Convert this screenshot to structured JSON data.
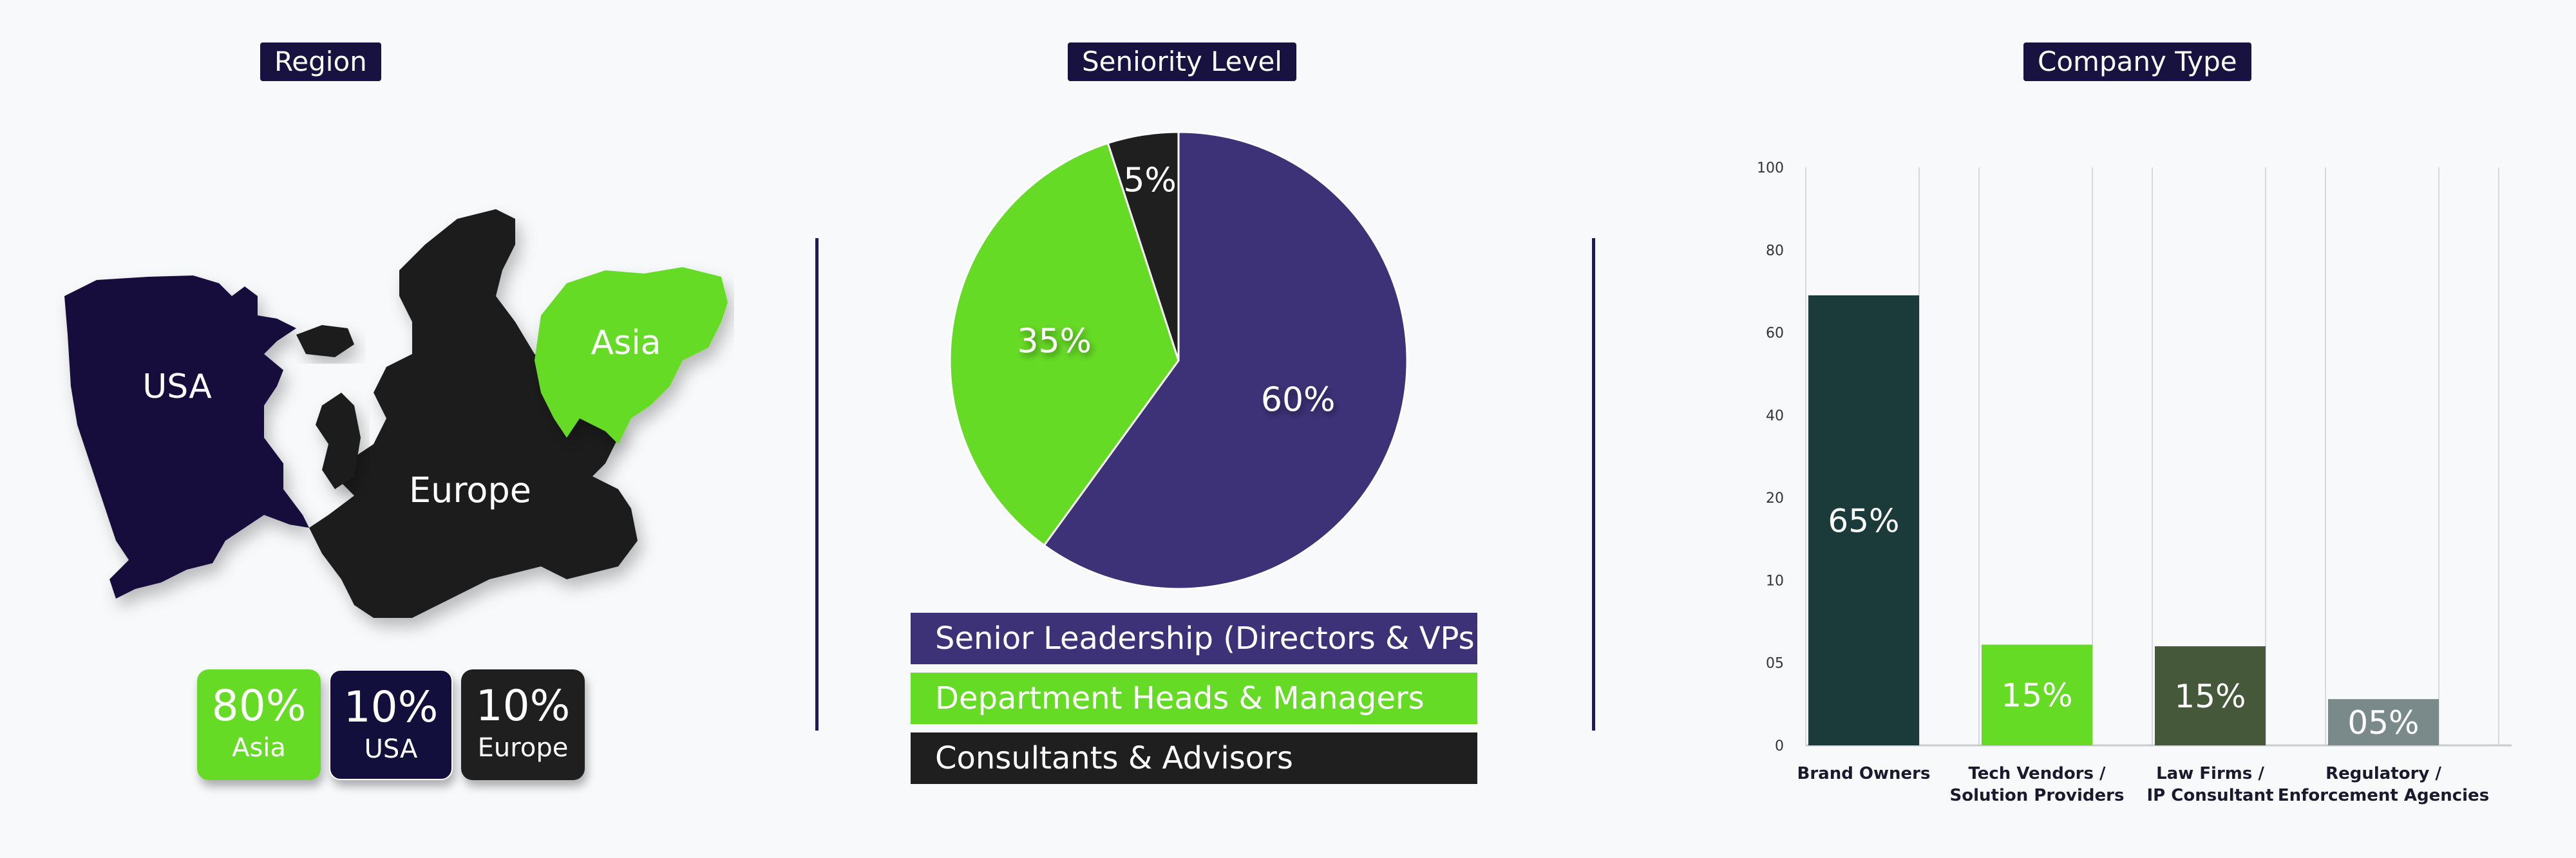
{
  "region": {
    "title": "Region",
    "map_labels": [
      {
        "name": "USA",
        "color": "#130f3c"
      },
      {
        "name": "Europe",
        "color": "#1f1f1f"
      },
      {
        "name": "Asia",
        "color": "#66db25"
      }
    ],
    "stats": [
      {
        "value": "80%",
        "label": "Asia",
        "color": "#66db25"
      },
      {
        "value": "10%",
        "label": "USA",
        "color": "#130f3c"
      },
      {
        "value": "10%",
        "label": "Europe",
        "color": "#1f1f1f"
      }
    ]
  },
  "seniority": {
    "title": "Seniority Level",
    "legend": [
      {
        "label": "Senior Leadership (Directors & VPs)",
        "color": "#3d3178",
        "text_color": "#ffffff"
      },
      {
        "label": "Department Heads & Managers",
        "color": "#66db25",
        "text_color": "#ffffff"
      },
      {
        "label": "Consultants & Advisors",
        "color": "#1f1f1f",
        "text_color": "#ffffff"
      }
    ]
  },
  "company": {
    "title": "Company Type"
  },
  "chart_data": [
    {
      "type": "pie",
      "title": "Seniority Level",
      "categories": [
        "Senior Leadership (Directors & VPs)",
        "Department Heads & Managers",
        "Consultants & Advisors"
      ],
      "values": [
        60,
        35,
        5
      ],
      "labels": [
        "60%",
        "35%",
        "5%"
      ],
      "colors": [
        "#3d3178",
        "#66db25",
        "#1f1f1f"
      ]
    },
    {
      "type": "bar",
      "title": "Company Type",
      "categories": [
        [
          "Brand Owners"
        ],
        [
          "Tech Vendors /",
          "Solution Providers"
        ],
        [
          "Law Firms /",
          "IP Consultant"
        ],
        [
          "Regulatory /",
          "Enforcement Agencies"
        ]
      ],
      "y_ticks": [
        "0",
        "05",
        "10",
        "20",
        "40",
        "60",
        "80",
        "100"
      ],
      "values": [
        65,
        15,
        15,
        5
      ],
      "bar_heights_in_tick_units": [
        5.45,
        1.22,
        1.2,
        0.56
      ],
      "labels": [
        "65%",
        "15%",
        "15%",
        "05%"
      ],
      "colors": [
        "#1b3a3a",
        "#66db25",
        "#46583a",
        "#7a8a8a"
      ],
      "grid": "vertical lines"
    }
  ]
}
